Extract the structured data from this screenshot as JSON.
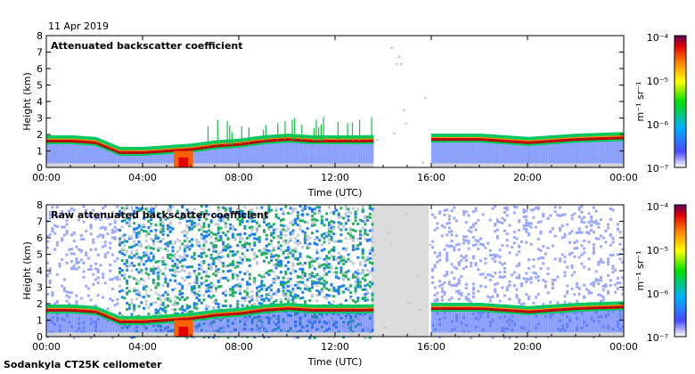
{
  "date": "11 Apr 2019",
  "instrument": "Sodankyla CT25K ceilometer",
  "colorbar": {
    "unit_label": "m⁻¹ sr⁻¹",
    "ticks": [
      "10⁻⁴",
      "10⁻⁵",
      "10⁻⁶",
      "10⁻⁷"
    ]
  },
  "chart_data": [
    {
      "type": "heatmap",
      "title": "Attenuated backscatter coefficient",
      "xlabel": "Time (UTC)",
      "ylabel": "Height (km)",
      "xticks": [
        "00:00",
        "04:00",
        "08:00",
        "12:00",
        "16:00",
        "20:00",
        "00:00"
      ],
      "yticks": [
        "0",
        "1",
        "2",
        "3",
        "4",
        "5",
        "6",
        "7",
        "8"
      ],
      "ylim": [
        0,
        8
      ],
      "xlim_hours": [
        0,
        24
      ],
      "colorscale": "log",
      "clim": [
        1e-07,
        0.0001
      ],
      "no_data_hours": [
        [
          13.5,
          15.9
        ]
      ],
      "cloud_base_km": [
        [
          0,
          1.6
        ],
        [
          1,
          1.6
        ],
        [
          2,
          1.5
        ],
        [
          3,
          0.9
        ],
        [
          4,
          0.9
        ],
        [
          5,
          1.0
        ],
        [
          6,
          1.1
        ],
        [
          7,
          1.3
        ],
        [
          8,
          1.4
        ],
        [
          9,
          1.6
        ],
        [
          10,
          1.7
        ],
        [
          11,
          1.6
        ],
        [
          12,
          1.6
        ],
        [
          13,
          1.6
        ],
        [
          16,
          1.7
        ],
        [
          18,
          1.7
        ],
        [
          20,
          1.5
        ],
        [
          22,
          1.7
        ],
        [
          24,
          1.8
        ]
      ]
    },
    {
      "type": "heatmap",
      "title": "Raw attenuated backscatter coefficient",
      "xlabel": "Time (UTC)",
      "ylabel": "Height (km)",
      "xticks": [
        "00:00",
        "04:00",
        "08:00",
        "12:00",
        "16:00",
        "20:00",
        "00:00"
      ],
      "yticks": [
        "0",
        "1",
        "2",
        "3",
        "4",
        "5",
        "6",
        "7",
        "8"
      ],
      "ylim": [
        0,
        8
      ],
      "xlim_hours": [
        0,
        24
      ],
      "colorscale": "log",
      "clim": [
        1e-07,
        0.0001
      ],
      "no_data_hours": [
        [
          13.5,
          15.9
        ]
      ],
      "cloud_base_km": [
        [
          0,
          1.6
        ],
        [
          1,
          1.6
        ],
        [
          2,
          1.5
        ],
        [
          3,
          0.9
        ],
        [
          4,
          0.9
        ],
        [
          5,
          1.0
        ],
        [
          6,
          1.1
        ],
        [
          7,
          1.3
        ],
        [
          8,
          1.4
        ],
        [
          9,
          1.6
        ],
        [
          10,
          1.7
        ],
        [
          11,
          1.6
        ],
        [
          12,
          1.6
        ],
        [
          13,
          1.6
        ],
        [
          16,
          1.7
        ],
        [
          18,
          1.7
        ],
        [
          20,
          1.5
        ],
        [
          22,
          1.7
        ],
        [
          24,
          1.8
        ]
      ]
    }
  ]
}
